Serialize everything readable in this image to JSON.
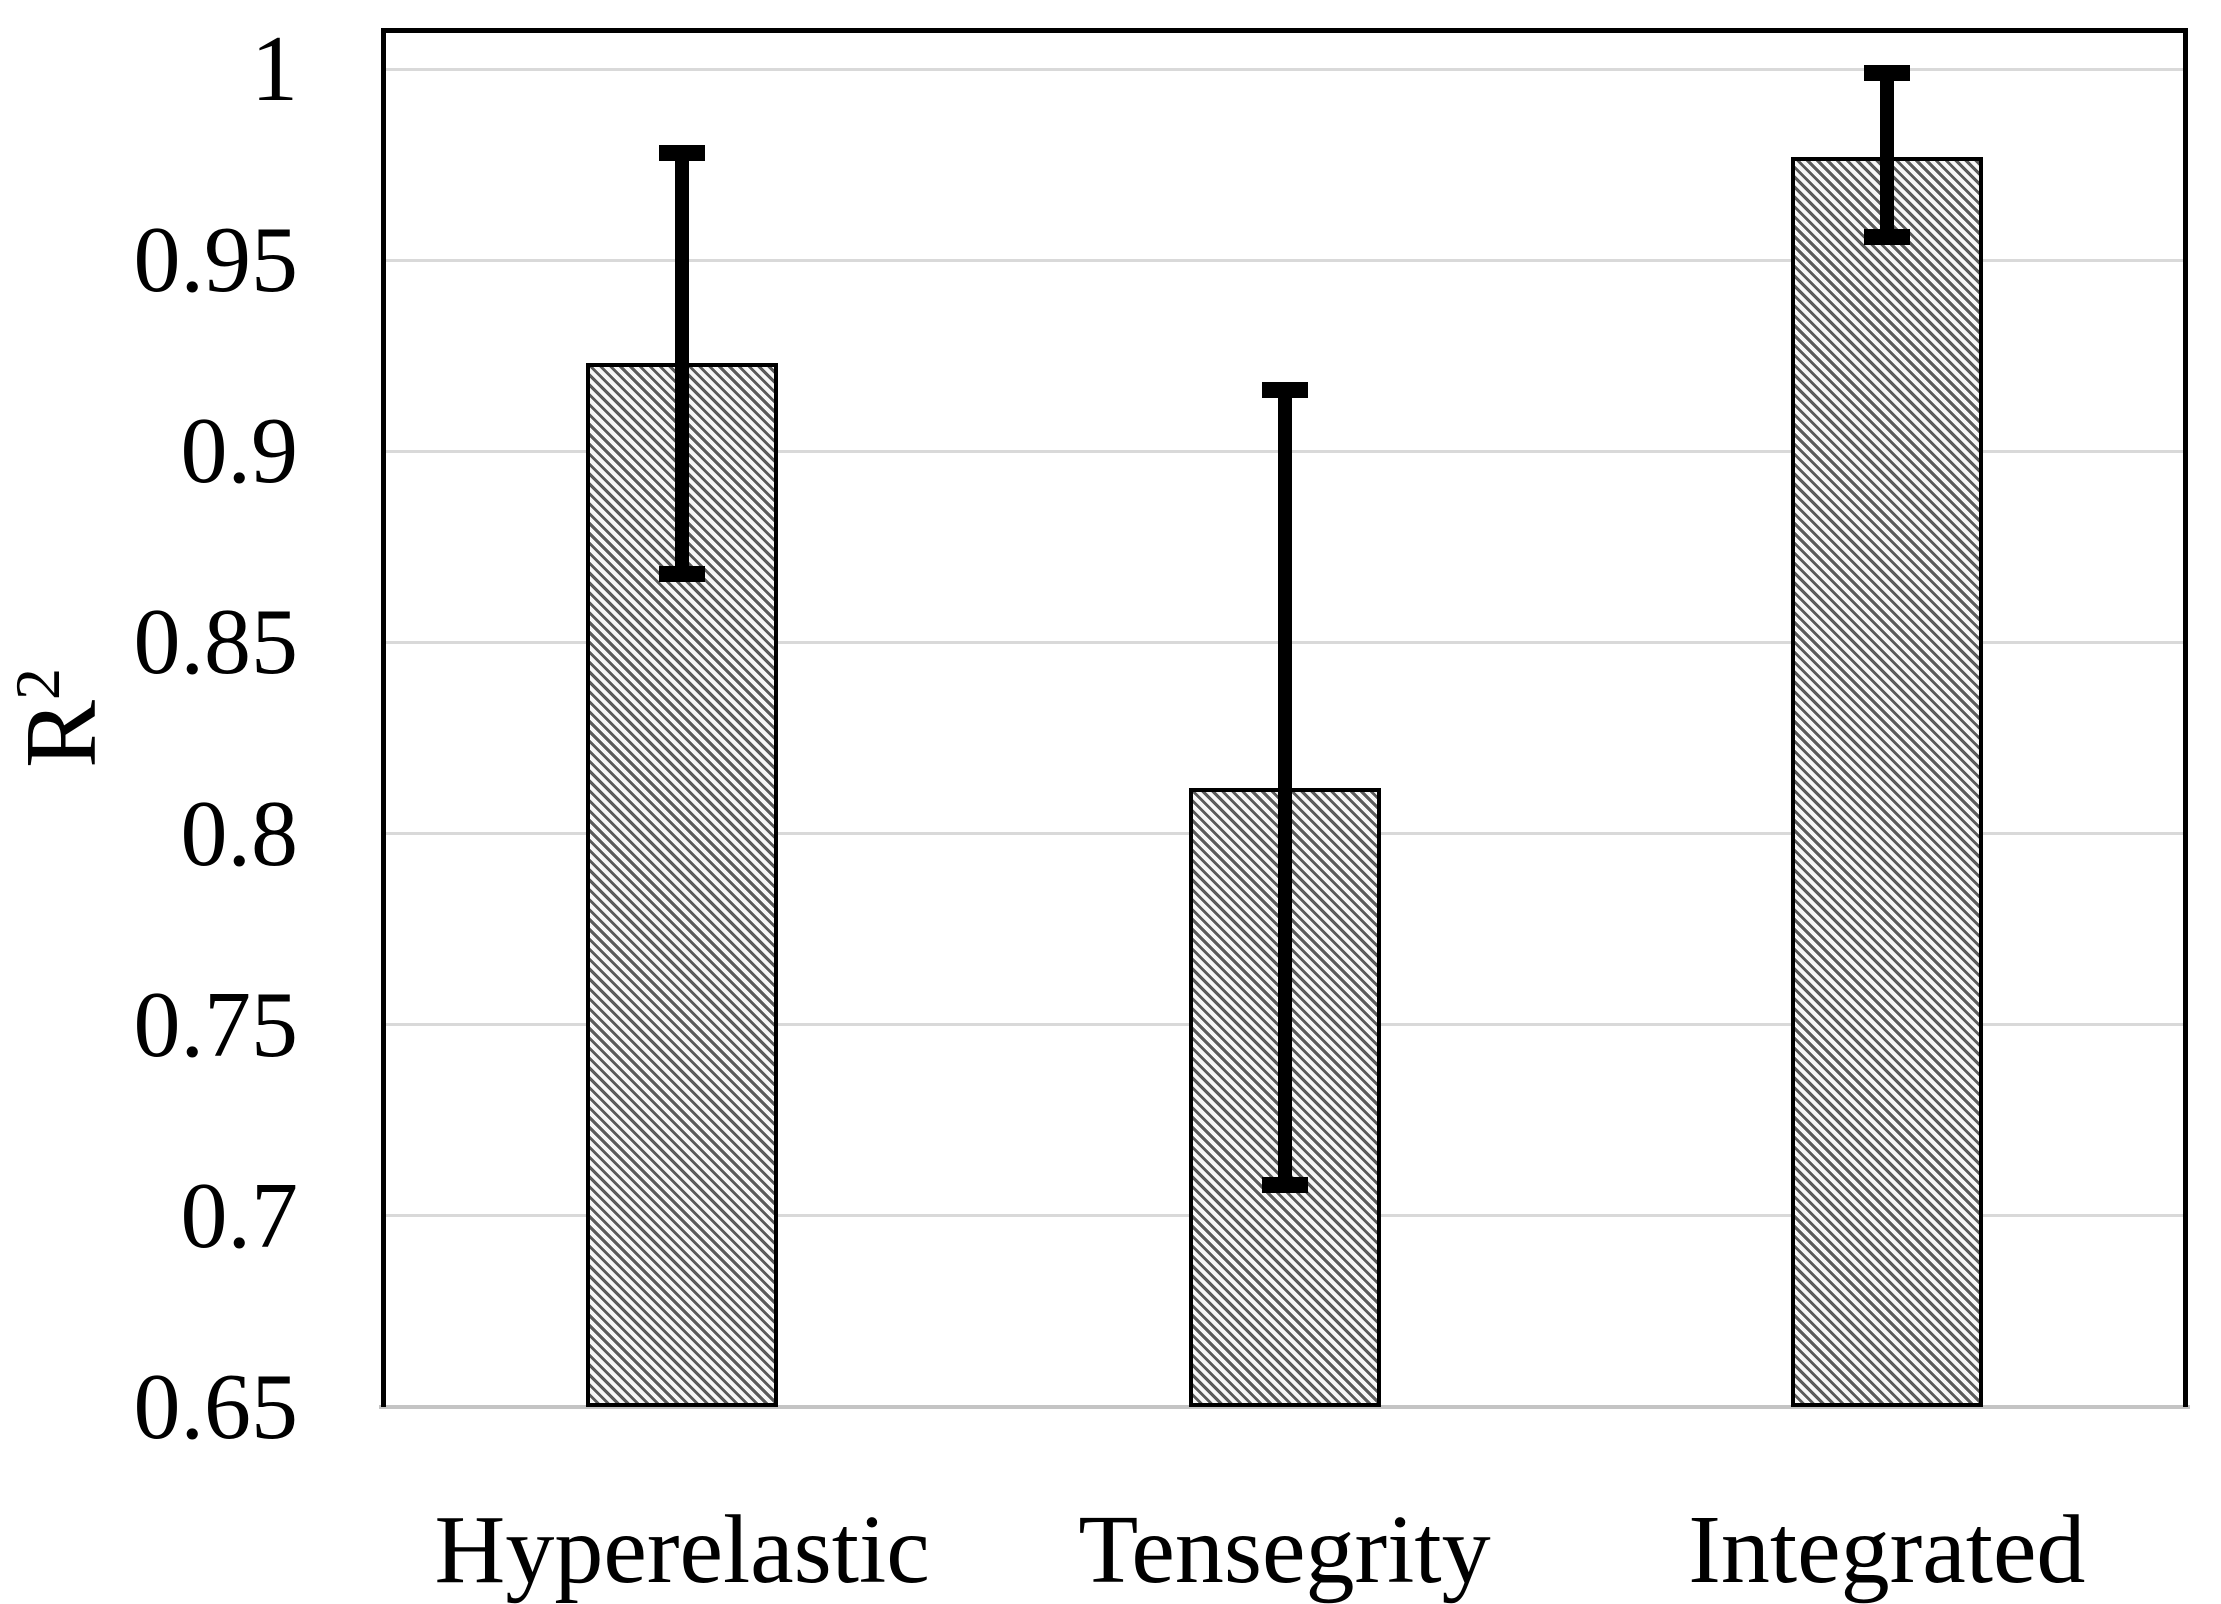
{
  "figure": {
    "background": "#ffffff"
  },
  "chart_data": {
    "type": "bar",
    "title": "",
    "xlabel": "",
    "ylabel": "R²",
    "ylabel_base": "R",
    "ylabel_sup": "2",
    "categories": [
      "Hyperelastic",
      "Tensegrity",
      "Integrated"
    ],
    "values": [
      0.923,
      0.812,
      0.977
    ],
    "error_high": [
      0.978,
      0.916,
      0.999
    ],
    "error_low": [
      0.868,
      0.708,
      0.956
    ],
    "ylim": [
      0.65,
      1.0
    ],
    "ytick_labels": [
      "1",
      "0.95",
      "0.9",
      "0.85",
      "0.8",
      "0.75",
      "0.7",
      "0.65"
    ],
    "ytick_values": [
      1.0,
      0.95,
      0.9,
      0.85,
      0.8,
      0.75,
      0.7,
      0.65
    ],
    "grid": true,
    "legend": false,
    "bar_style": "diagonal-hatch",
    "colors": {
      "bar_hatch_line": "#5a5a5a",
      "bar_hatch_bg": "#f7f7f7",
      "bar_border": "#000000",
      "error_bar": "#000000",
      "gridline": "#d9d9d9",
      "axis_line": "#c4c4c4",
      "plot_border": "#000000",
      "text": "#000000",
      "background": "#ffffff"
    }
  }
}
